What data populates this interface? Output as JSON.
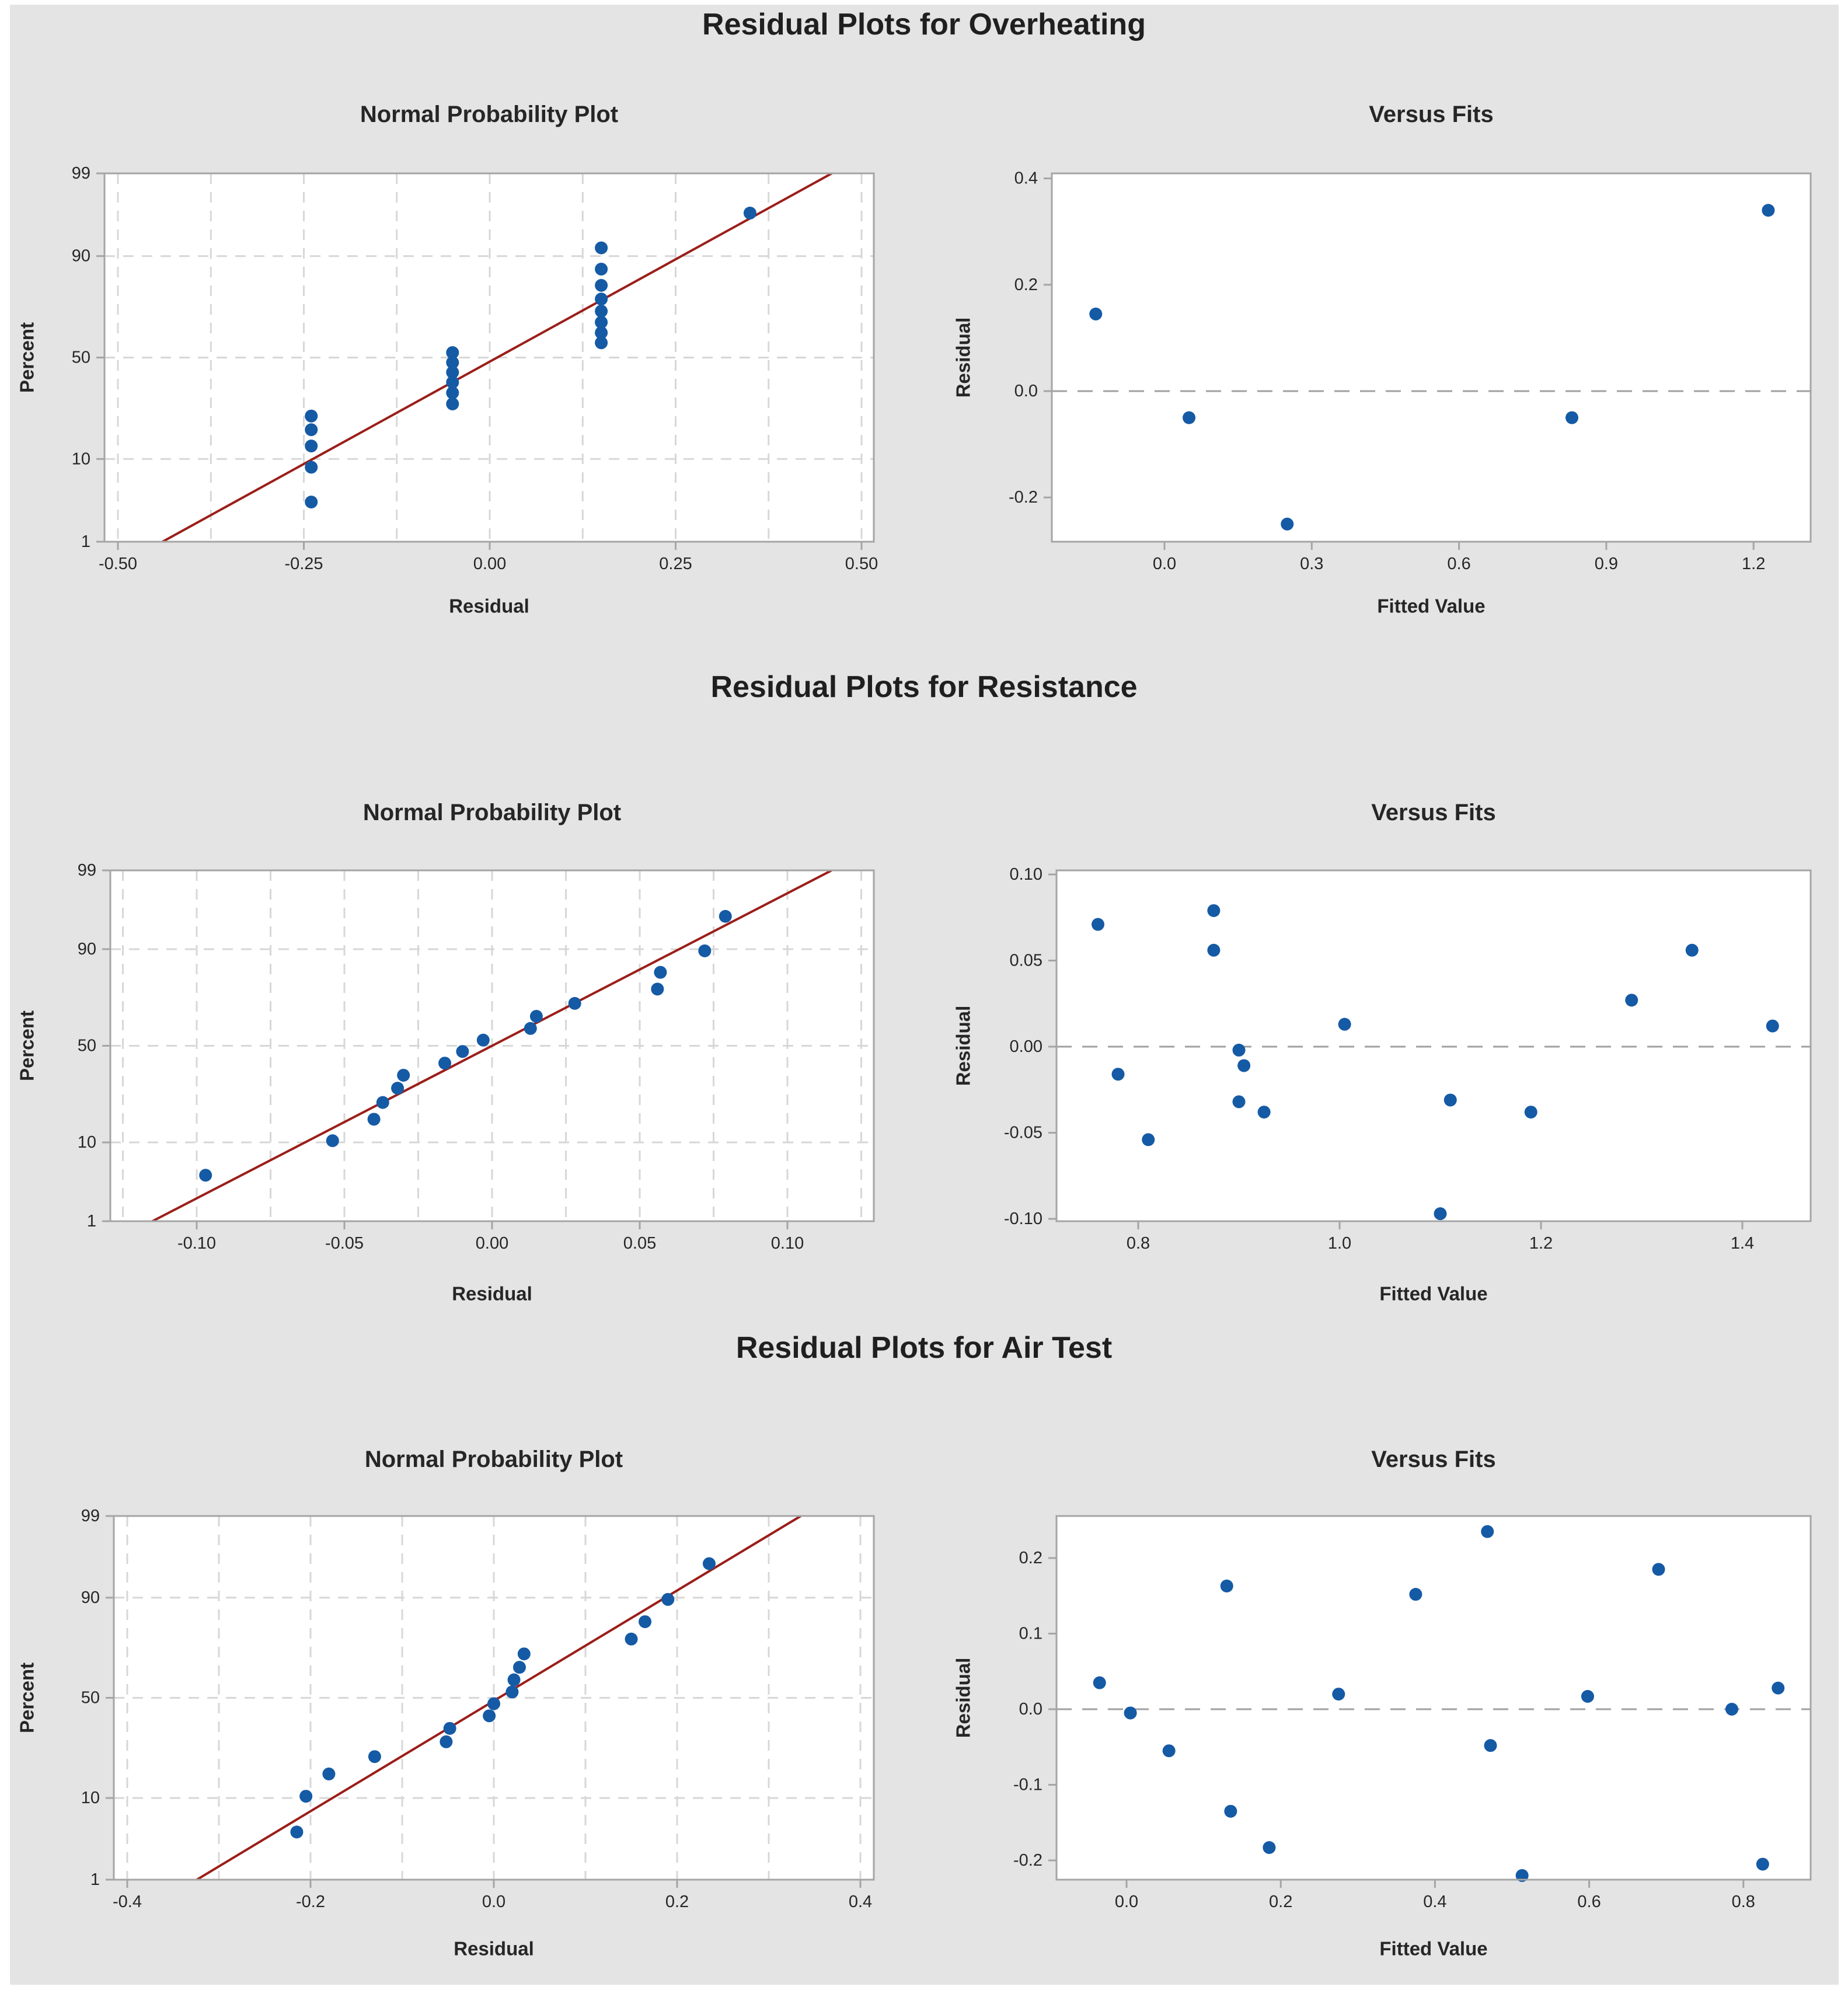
{
  "colors": {
    "page_bg": "#ffffff",
    "panel_bg": "#e4e4e4",
    "plot_bg": "#ffffff",
    "frame": "#a5a5a5",
    "gridline": "#d7d7d7",
    "zero_line": "#a0a0a0",
    "dot_blue": "#155aa5",
    "fit_line_red": "#9b1e19",
    "text": "#262626",
    "title_text": "#1f1f1f"
  },
  "chart_data": [
    {
      "title": "Residual Plots for Overheating",
      "npp": {
        "type": "scatter",
        "subtype": "normal-probability-plot",
        "subtitle": "Normal Probability Plot",
        "xlabel": "Residual",
        "ylabel": "Percent",
        "x_ticks": [
          {
            "v": -0.5,
            "label": "-0.50"
          },
          {
            "v": -0.25,
            "label": "-0.25"
          },
          {
            "v": 0.0,
            "label": "0.00"
          },
          {
            "v": 0.25,
            "label": "0.25"
          },
          {
            "v": 0.5,
            "label": "0.50"
          }
        ],
        "grid_x": [
          -0.5,
          -0.375,
          -0.25,
          -0.125,
          0,
          0.125,
          0.25,
          0.375,
          0.5
        ],
        "percent_ticks": [
          99,
          90,
          50,
          10,
          1
        ],
        "grid_percents": [
          10,
          50,
          90
        ],
        "fit_line": {
          "x_at_p1": -0.44,
          "x_at_p99": 0.46
        },
        "points": [
          {
            "residual": -0.24,
            "percent": 3.4
          },
          {
            "residual": -0.24,
            "percent": 8.3
          },
          {
            "residual": -0.24,
            "percent": 13.2
          },
          {
            "residual": -0.24,
            "percent": 18.1
          },
          {
            "residual": -0.24,
            "percent": 23.0
          },
          {
            "residual": -0.05,
            "percent": 27.9
          },
          {
            "residual": -0.05,
            "percent": 32.8
          },
          {
            "residual": -0.05,
            "percent": 37.7
          },
          {
            "residual": -0.05,
            "percent": 42.6
          },
          {
            "residual": -0.05,
            "percent": 47.5
          },
          {
            "residual": -0.05,
            "percent": 52.5
          },
          {
            "residual": 0.15,
            "percent": 57.4
          },
          {
            "residual": 0.15,
            "percent": 62.3
          },
          {
            "residual": 0.15,
            "percent": 67.2
          },
          {
            "residual": 0.15,
            "percent": 72.1
          },
          {
            "residual": 0.15,
            "percent": 77.0
          },
          {
            "residual": 0.15,
            "percent": 81.9
          },
          {
            "residual": 0.15,
            "percent": 86.8
          },
          {
            "residual": 0.15,
            "percent": 91.7
          },
          {
            "residual": 0.35,
            "percent": 96.6
          }
        ]
      },
      "vf": {
        "type": "scatter",
        "subtype": "versus-fits",
        "subtitle": "Versus Fits",
        "xlabel": "Fitted Value",
        "ylabel": "Residual",
        "x_ticks": [
          {
            "v": 0.0,
            "label": "0.0"
          },
          {
            "v": 0.3,
            "label": "0.3"
          },
          {
            "v": 0.6,
            "label": "0.6"
          },
          {
            "v": 0.9,
            "label": "0.9"
          },
          {
            "v": 1.2,
            "label": "1.2"
          }
        ],
        "y_ticks": [
          {
            "v": 0.4,
            "label": "0.4"
          },
          {
            "v": 0.2,
            "label": "0.2"
          },
          {
            "v": 0.0,
            "label": "0.0"
          },
          {
            "v": -0.2,
            "label": "-0.2"
          }
        ],
        "zero_line": 0,
        "points": [
          {
            "fitted": -0.14,
            "residual": 0.145
          },
          {
            "fitted": 0.05,
            "residual": -0.05
          },
          {
            "fitted": 0.25,
            "residual": -0.25
          },
          {
            "fitted": 0.83,
            "residual": -0.05
          },
          {
            "fitted": 1.23,
            "residual": 0.34
          }
        ]
      }
    },
    {
      "title": "Residual Plots for Resistance",
      "npp": {
        "type": "scatter",
        "subtype": "normal-probability-plot",
        "subtitle": "Normal Probability Plot",
        "xlabel": "Residual",
        "ylabel": "Percent",
        "x_ticks": [
          {
            "v": -0.1,
            "label": "-0.10"
          },
          {
            "v": -0.05,
            "label": "-0.05"
          },
          {
            "v": 0.0,
            "label": "0.00"
          },
          {
            "v": 0.05,
            "label": "0.05"
          },
          {
            "v": 0.1,
            "label": "0.10"
          }
        ],
        "grid_x": [
          -0.125,
          -0.1,
          -0.075,
          -0.05,
          -0.025,
          0,
          0.025,
          0.05,
          0.075,
          0.1,
          0.125
        ],
        "percent_ticks": [
          99,
          90,
          50,
          10,
          1
        ],
        "grid_percents": [
          10,
          50,
          90
        ],
        "fit_line": {
          "x_at_p1": -0.115,
          "x_at_p99": 0.115
        },
        "points": [
          {
            "residual": -0.097,
            "percent": 4.3
          },
          {
            "residual": -0.054,
            "percent": 10.4
          },
          {
            "residual": -0.04,
            "percent": 16.5
          },
          {
            "residual": -0.037,
            "percent": 22.6
          },
          {
            "residual": -0.032,
            "percent": 28.7
          },
          {
            "residual": -0.03,
            "percent": 34.8
          },
          {
            "residual": -0.016,
            "percent": 40.9
          },
          {
            "residual": -0.01,
            "percent": 47.0
          },
          {
            "residual": -0.003,
            "percent": 53.0
          },
          {
            "residual": 0.013,
            "percent": 59.1
          },
          {
            "residual": 0.015,
            "percent": 65.2
          },
          {
            "residual": 0.028,
            "percent": 71.3
          },
          {
            "residual": 0.056,
            "percent": 77.4
          },
          {
            "residual": 0.057,
            "percent": 83.5
          },
          {
            "residual": 0.072,
            "percent": 89.6
          },
          {
            "residual": 0.079,
            "percent": 95.7
          }
        ]
      },
      "vf": {
        "type": "scatter",
        "subtype": "versus-fits",
        "subtitle": "Versus Fits",
        "xlabel": "Fitted Value",
        "ylabel": "Residual",
        "x_ticks": [
          {
            "v": 0.8,
            "label": "0.8"
          },
          {
            "v": 1.0,
            "label": "1.0"
          },
          {
            "v": 1.2,
            "label": "1.2"
          },
          {
            "v": 1.4,
            "label": "1.4"
          }
        ],
        "y_ticks": [
          {
            "v": 0.1,
            "label": "0.10"
          },
          {
            "v": 0.05,
            "label": "0.05"
          },
          {
            "v": 0.0,
            "label": "0.00"
          },
          {
            "v": -0.05,
            "label": "-0.05"
          },
          {
            "v": -0.1,
            "label": "-0.10"
          }
        ],
        "zero_line": 0,
        "points": [
          {
            "fitted": 0.76,
            "residual": 0.071
          },
          {
            "fitted": 0.78,
            "residual": -0.016
          },
          {
            "fitted": 0.81,
            "residual": -0.054
          },
          {
            "fitted": 0.875,
            "residual": 0.079
          },
          {
            "fitted": 0.875,
            "residual": 0.056
          },
          {
            "fitted": 0.9,
            "residual": -0.002
          },
          {
            "fitted": 0.905,
            "residual": -0.011
          },
          {
            "fitted": 0.9,
            "residual": -0.032
          },
          {
            "fitted": 0.925,
            "residual": -0.038
          },
          {
            "fitted": 1.005,
            "residual": 0.013
          },
          {
            "fitted": 1.1,
            "residual": -0.097
          },
          {
            "fitted": 1.11,
            "residual": -0.031
          },
          {
            "fitted": 1.19,
            "residual": -0.038
          },
          {
            "fitted": 1.29,
            "residual": 0.027
          },
          {
            "fitted": 1.35,
            "residual": 0.056
          },
          {
            "fitted": 1.43,
            "residual": 0.012
          }
        ]
      }
    },
    {
      "title": "Residual Plots for Air Test",
      "npp": {
        "type": "scatter",
        "subtype": "normal-probability-plot",
        "subtitle": "Normal Probability Plot",
        "xlabel": "Residual",
        "ylabel": "Percent",
        "x_ticks": [
          {
            "v": -0.4,
            "label": "-0.4"
          },
          {
            "v": -0.2,
            "label": "-0.2"
          },
          {
            "v": 0.0,
            "label": "0.0"
          },
          {
            "v": 0.2,
            "label": "0.2"
          },
          {
            "v": 0.4,
            "label": "0.4"
          }
        ],
        "grid_x": [
          -0.4,
          -0.3,
          -0.2,
          -0.1,
          0,
          0.1,
          0.2,
          0.3,
          0.4
        ],
        "percent_ticks": [
          99,
          90,
          50,
          10,
          1
        ],
        "grid_percents": [
          10,
          50,
          90
        ],
        "fit_line": {
          "x_at_p1": -0.324,
          "x_at_p99": 0.335
        },
        "points": [
          {
            "residual": -0.215,
            "percent": 4.3
          },
          {
            "residual": -0.205,
            "percent": 10.4
          },
          {
            "residual": -0.18,
            "percent": 16.5
          },
          {
            "residual": -0.13,
            "percent": 22.6
          },
          {
            "residual": -0.052,
            "percent": 28.7
          },
          {
            "residual": -0.048,
            "percent": 34.8
          },
          {
            "residual": -0.005,
            "percent": 40.9
          },
          {
            "residual": 0.0,
            "percent": 47.0
          },
          {
            "residual": 0.02,
            "percent": 53.0
          },
          {
            "residual": 0.022,
            "percent": 59.1
          },
          {
            "residual": 0.028,
            "percent": 65.2
          },
          {
            "residual": 0.033,
            "percent": 71.3
          },
          {
            "residual": 0.15,
            "percent": 77.4
          },
          {
            "residual": 0.165,
            "percent": 83.5
          },
          {
            "residual": 0.19,
            "percent": 89.6
          },
          {
            "residual": 0.235,
            "percent": 95.7
          }
        ]
      },
      "vf": {
        "type": "scatter",
        "subtype": "versus-fits",
        "subtitle": "Versus Fits",
        "xlabel": "Fitted Value",
        "ylabel": "Residual",
        "x_ticks": [
          {
            "v": 0.0,
            "label": "0.0"
          },
          {
            "v": 0.2,
            "label": "0.2"
          },
          {
            "v": 0.4,
            "label": "0.4"
          },
          {
            "v": 0.6,
            "label": "0.6"
          },
          {
            "v": 0.8,
            "label": "0.8"
          }
        ],
        "y_ticks": [
          {
            "v": 0.2,
            "label": "0.2"
          },
          {
            "v": 0.1,
            "label": "0.1"
          },
          {
            "v": 0.0,
            "label": "0.0"
          },
          {
            "v": -0.1,
            "label": "-0.1"
          },
          {
            "v": -0.2,
            "label": "-0.2"
          }
        ],
        "zero_line": 0,
        "points": [
          {
            "fitted": -0.035,
            "residual": 0.035
          },
          {
            "fitted": 0.005,
            "residual": -0.005
          },
          {
            "fitted": 0.055,
            "residual": -0.055
          },
          {
            "fitted": 0.13,
            "residual": 0.163
          },
          {
            "fitted": 0.135,
            "residual": -0.135
          },
          {
            "fitted": 0.185,
            "residual": -0.183
          },
          {
            "fitted": 0.275,
            "residual": 0.02
          },
          {
            "fitted": 0.375,
            "residual": 0.152
          },
          {
            "fitted": 0.468,
            "residual": 0.235
          },
          {
            "fitted": 0.472,
            "residual": -0.048
          },
          {
            "fitted": 0.513,
            "residual": -0.22
          },
          {
            "fitted": 0.598,
            "residual": 0.017
          },
          {
            "fitted": 0.69,
            "residual": 0.185
          },
          {
            "fitted": 0.785,
            "residual": 0.0
          },
          {
            "fitted": 0.825,
            "residual": -0.205
          },
          {
            "fitted": 0.845,
            "residual": 0.028
          }
        ]
      }
    }
  ]
}
